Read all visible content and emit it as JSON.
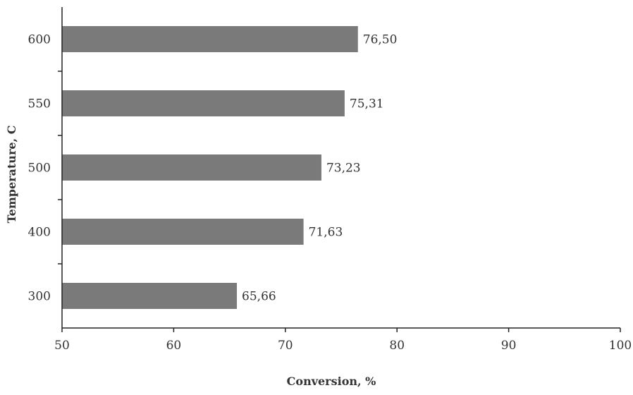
{
  "chart_data": {
    "type": "bar",
    "orientation": "horizontal",
    "title": "",
    "xlabel": "Conversion, %",
    "ylabel": "Temperature, C",
    "xlim": [
      50,
      100
    ],
    "x_ticks": [
      "50",
      "60",
      "70",
      "80",
      "90",
      "100"
    ],
    "categories": [
      "600",
      "550",
      "500",
      "400",
      "300"
    ],
    "values": [
      76.5,
      75.31,
      73.23,
      71.63,
      65.66
    ],
    "data_labels": [
      "76,50",
      "75,31",
      "73,23",
      "71,63",
      "65,66"
    ],
    "bar_color": "#7a7a7a",
    "grid": false,
    "legend": "none"
  }
}
